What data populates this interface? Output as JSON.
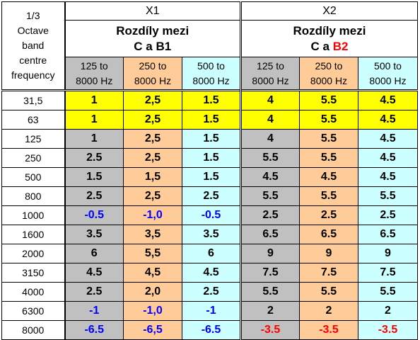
{
  "header": {
    "freq_label_lines": [
      "1/3",
      "Octave",
      "band",
      "centre",
      "frequency"
    ],
    "groups": [
      {
        "title": "X1",
        "sub_line1": "Rozdíly mezi",
        "sub_line2_prefix": "C a ",
        "sub_line2_highlight": "B1",
        "highlight_color": "#000000"
      },
      {
        "title": "X2",
        "sub_line1": "Rozdíly mezi",
        "sub_line2_prefix": "C a ",
        "sub_line2_highlight": "B2",
        "highlight_color": "#ff0000"
      }
    ],
    "ranges": [
      {
        "line1": "125 to",
        "line2": "8000 Hz"
      },
      {
        "line1": "250 to",
        "line2": "8000 Hz"
      },
      {
        "line1": "500 to",
        "line2": "8000 Hz"
      },
      {
        "line1": "125 to",
        "line2": "8000 Hz"
      },
      {
        "line1": "250 to",
        "line2": "8000 Hz"
      },
      {
        "line1": "500 to",
        "line2": "8000 Hz"
      }
    ]
  },
  "colors": {
    "gray": "#c0c0c0",
    "peach": "#ffcc99",
    "cyan": "#ccffff",
    "yellow": "#ffff00",
    "negative_x1": "#0000ff",
    "negative_x2": "#ff0000"
  },
  "rows": [
    {
      "freq": "31,5",
      "highlight": true,
      "values": [
        "1",
        "2,5",
        "1.5",
        "4",
        "5.5",
        "4.5"
      ]
    },
    {
      "freq": "63",
      "highlight": true,
      "values": [
        "1",
        "2,5",
        "1.5",
        "4",
        "5.5",
        "4.5"
      ]
    },
    {
      "freq": "125",
      "highlight": false,
      "values": [
        "1",
        "2,5",
        "1.5",
        "4",
        "5.5",
        "4.5"
      ]
    },
    {
      "freq": "250",
      "highlight": false,
      "values": [
        "2.5",
        "2,5",
        "1.5",
        "5.5",
        "5.5",
        "4.5"
      ]
    },
    {
      "freq": "500",
      "highlight": false,
      "values": [
        "1.5",
        "1,5",
        "1.5",
        "4.5",
        "4.5",
        "4.5"
      ]
    },
    {
      "freq": "800",
      "highlight": false,
      "values": [
        "2.5",
        "2,5",
        "2.5",
        "5.5",
        "5.5",
        "5.5"
      ]
    },
    {
      "freq": "1000",
      "highlight": false,
      "values": [
        "-0.5",
        "-1,0",
        "-0.5",
        "2.5",
        "2.5",
        "2.5"
      ]
    },
    {
      "freq": "1600",
      "highlight": false,
      "values": [
        "3.5",
        "3,5",
        "3.5",
        "6.5",
        "6.5",
        "6.5"
      ]
    },
    {
      "freq": "2000",
      "highlight": false,
      "values": [
        "6",
        "5,5",
        "6",
        "9",
        "9",
        "9"
      ]
    },
    {
      "freq": "3150",
      "highlight": false,
      "values": [
        "4.5",
        "4,5",
        "4.5",
        "7.5",
        "7.5",
        "7.5"
      ]
    },
    {
      "freq": "4000",
      "highlight": false,
      "values": [
        "2.5",
        "2,0",
        "2.5",
        "5.5",
        "5.5",
        "5.5"
      ]
    },
    {
      "freq": "6300",
      "highlight": false,
      "values": [
        "-1",
        "-1,0",
        "-1",
        "2",
        "2",
        "2"
      ]
    },
    {
      "freq": "8000",
      "highlight": false,
      "values": [
        "-6.5",
        "-6,5",
        "-6.5",
        "-3.5",
        "-3.5",
        "-3.5"
      ]
    }
  ]
}
